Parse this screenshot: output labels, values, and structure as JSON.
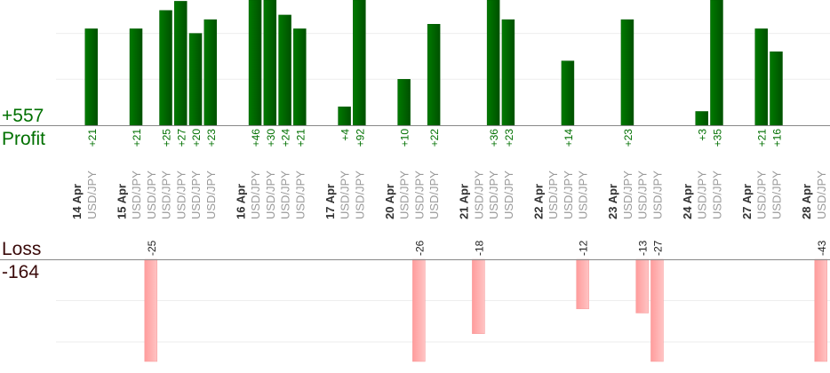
{
  "chart_data": {
    "type": "bar",
    "title": "",
    "profit_label": "Profit",
    "profit_total": "+557",
    "loss_label": "Loss",
    "loss_total": "-164",
    "grid": true,
    "colors": {
      "profit": "#006400",
      "loss": "#ffaaaa",
      "profit_text": "#007000",
      "loss_text": "#3a0a0a",
      "symbol_text": "#999999",
      "date_text": "#333333"
    },
    "days": [
      {
        "date": "14 Apr",
        "trades": [
          {
            "symbol": "USD/JPY",
            "value": 21
          }
        ]
      },
      {
        "date": "15 Apr",
        "trades": [
          {
            "symbol": "USD/JPY",
            "value": 21
          },
          {
            "symbol": "USD/JPY",
            "value": -25
          },
          {
            "symbol": "USD/JPY",
            "value": 25
          },
          {
            "symbol": "USD/JPY",
            "value": 27
          },
          {
            "symbol": "USD/JPY",
            "value": 20
          },
          {
            "symbol": "USD/JPY",
            "value": 23
          }
        ]
      },
      {
        "date": "16 Apr",
        "trades": [
          {
            "symbol": "USD/JPY",
            "value": 46
          },
          {
            "symbol": "USD/JPY",
            "value": 30
          },
          {
            "symbol": "USD/JPY",
            "value": 24
          },
          {
            "symbol": "USD/JPY",
            "value": 21
          }
        ]
      },
      {
        "date": "17 Apr",
        "trades": [
          {
            "symbol": "USD/JPY",
            "value": 4
          },
          {
            "symbol": "USD/JPY",
            "value": 92
          }
        ]
      },
      {
        "date": "20 Apr",
        "trades": [
          {
            "symbol": "USD/JPY",
            "value": 10
          },
          {
            "symbol": "USD/JPY",
            "value": -26
          },
          {
            "symbol": "USD/JPY",
            "value": 22
          }
        ]
      },
      {
        "date": "21 Apr",
        "trades": [
          {
            "symbol": "USD/JPY",
            "value": -18
          },
          {
            "symbol": "USD/JPY",
            "value": 36
          },
          {
            "symbol": "USD/JPY",
            "value": 23
          }
        ]
      },
      {
        "date": "22 Apr",
        "trades": [
          {
            "symbol": "USD/JPY",
            "value": 0
          },
          {
            "symbol": "USD/JPY",
            "value": 14
          },
          {
            "symbol": "USD/JPY",
            "value": -12
          }
        ]
      },
      {
        "date": "23 Apr",
        "trades": [
          {
            "symbol": "USD/JPY",
            "value": 23
          },
          {
            "symbol": "USD/JPY",
            "value": -13
          },
          {
            "symbol": "USD/JPY",
            "value": -27
          }
        ]
      },
      {
        "date": "24 Apr",
        "trades": [
          {
            "symbol": "USD/JPY",
            "value": 3
          },
          {
            "symbol": "USD/JPY",
            "value": 35
          }
        ]
      },
      {
        "date": "27 Apr",
        "trades": [
          {
            "symbol": "USD/JPY",
            "value": 21
          },
          {
            "symbol": "USD/JPY",
            "value": 16
          }
        ]
      },
      {
        "date": "28 Apr",
        "trades": [
          {
            "symbol": "USD/JPY",
            "value": -43
          }
        ]
      }
    ]
  }
}
